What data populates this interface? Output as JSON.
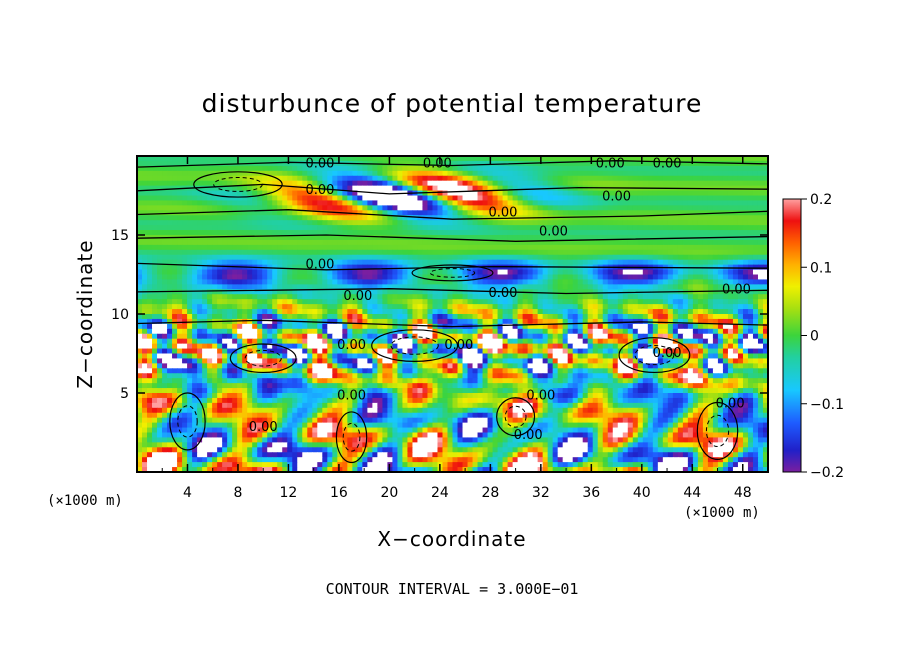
{
  "chart_data": {
    "type": "heatmap",
    "title": "disturbunce of potential temperature",
    "xlabel": "X−coordinate",
    "ylabel": "Z−coordinate",
    "x_unit": "(×1000 m)",
    "y_unit": "(×1000 m)",
    "xlim": [
      0,
      50
    ],
    "ylim": [
      0,
      20
    ],
    "x_ticks": [
      "4",
      "8",
      "12",
      "16",
      "20",
      "24",
      "28",
      "32",
      "36",
      "40",
      "44",
      "48"
    ],
    "y_ticks": [
      "5",
      "10",
      "15"
    ],
    "colorbar": {
      "min": -0.2,
      "max": 0.2,
      "tick_labels": [
        "0.2",
        "0.1",
        "0",
        "−0.1",
        "−0.2"
      ]
    },
    "contour_label": "0.00",
    "contour_interval_text": "CONTOUR INTERVAL = 3.000E−01"
  }
}
